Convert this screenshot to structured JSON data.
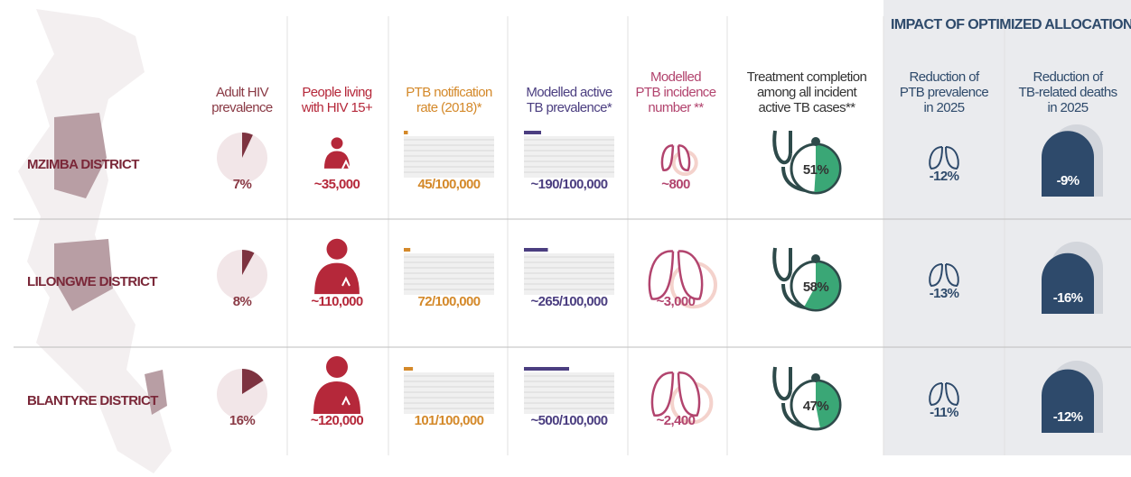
{
  "header": {
    "title": "IMPACT OF OPTIMIZED ALLOCATION"
  },
  "columns": [
    [
      "Adult HIV",
      "prevalence"
    ],
    [
      "People living",
      "with HIV 15+"
    ],
    [
      "PTB notification",
      "rate (2018)*"
    ],
    [
      "Modelled active",
      "TB prevalence*"
    ],
    [
      "Modelled",
      "PTB incidence",
      "number **"
    ],
    [
      "Treatment completion",
      "among all incident",
      "active TB cases**"
    ],
    [
      "Reduction of",
      "PTB prevalence",
      "in 2025"
    ],
    [
      "Reduction of",
      "TB-related deaths",
      "in 2025"
    ]
  ],
  "rows": [
    {
      "district": "MZIMBA DISTRICT",
      "hiv": {
        "value": 7,
        "label": "7%"
      },
      "people": {
        "value": 35000,
        "label": "~35,000"
      },
      "notification": {
        "value": 45,
        "label": "45/100,000"
      },
      "prevalence": {
        "value": 190,
        "label": "~190/100,000"
      },
      "incidence": {
        "value": 800,
        "label": "~800"
      },
      "treatment": {
        "value": 51,
        "label": "51%"
      },
      "prev_reduction": {
        "value": -12,
        "label": "-12%"
      },
      "death_reduction": {
        "value": -9,
        "label": "-9%"
      }
    },
    {
      "district": "LILONGWE DISTRICT",
      "hiv": {
        "value": 8,
        "label": "8%"
      },
      "people": {
        "value": 110000,
        "label": "~110,000"
      },
      "notification": {
        "value": 72,
        "label": "72/100,000"
      },
      "prevalence": {
        "value": 265,
        "label": "~265/100,000"
      },
      "incidence": {
        "value": 3000,
        "label": "~3,000"
      },
      "treatment": {
        "value": 58,
        "label": "58%"
      },
      "prev_reduction": {
        "value": -13,
        "label": "-13%"
      },
      "death_reduction": {
        "value": -16,
        "label": "-16%"
      }
    },
    {
      "district": "BLANTYRE DISTRICT",
      "hiv": {
        "value": 16,
        "label": "16%"
      },
      "people": {
        "value": 120000,
        "label": "~120,000"
      },
      "notification": {
        "value": 101,
        "label": "101/100,000"
      },
      "prevalence": {
        "value": 500,
        "label": "~500/100,000"
      },
      "incidence": {
        "value": 2400,
        "label": "~2,400"
      },
      "treatment": {
        "value": 47,
        "label": "47%"
      },
      "prev_reduction": {
        "value": -11,
        "label": "-11%"
      },
      "death_reduction": {
        "value": -12,
        "label": "-12%"
      }
    }
  ]
}
